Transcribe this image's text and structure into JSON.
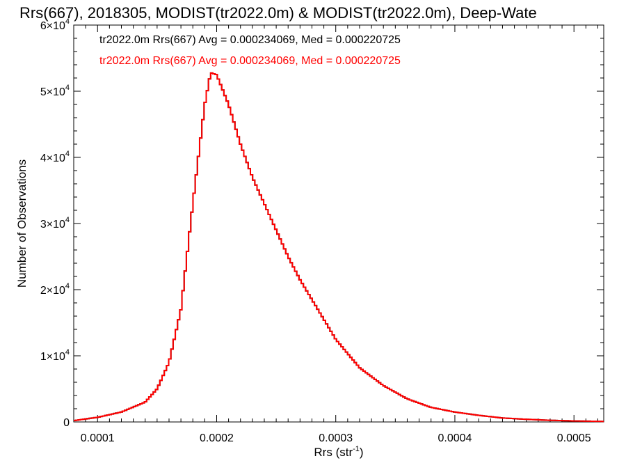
{
  "chart_data": {
    "type": "line",
    "title": "Rrs(667), 2018305, MODIST(tr2022.0m) & MODIST(tr2022.0m), Deep-Wate",
    "xlabel": "Rrs (str",
    "xlabel_sup": "-1",
    "xlabel_close": ")",
    "ylabel": "Number of Observations",
    "xlim": [
      8e-05,
      0.000525
    ],
    "ylim": [
      0,
      60000
    ],
    "x_ticks": [
      {
        "value": 0.0001,
        "label": "0.0001"
      },
      {
        "value": 0.0002,
        "label": "0.0002"
      },
      {
        "value": 0.0003,
        "label": "0.0003"
      },
      {
        "value": 0.0004,
        "label": "0.0004"
      },
      {
        "value": 0.0005,
        "label": "0.0005"
      }
    ],
    "y_ticks": [
      {
        "value": 0,
        "mant": "0",
        "exp": ""
      },
      {
        "value": 10000,
        "mant": "1×10",
        "exp": "4"
      },
      {
        "value": 20000,
        "mant": "2×10",
        "exp": "4"
      },
      {
        "value": 30000,
        "mant": "3×10",
        "exp": "4"
      },
      {
        "value": 40000,
        "mant": "4×10",
        "exp": "4"
      },
      {
        "value": 50000,
        "mant": "5×10",
        "exp": "4"
      },
      {
        "value": 60000,
        "mant": "6×10",
        "exp": "4"
      }
    ],
    "grid": false,
    "legend_placement": "top-left",
    "series": [
      {
        "name": "tr2022.0m Rrs(667) Avg = 0.000234069, Med = 0.000220725",
        "color": "#000000",
        "x": [
          8e-05,
          0.0001,
          0.00012,
          0.00014,
          0.00015,
          0.00016,
          0.00017,
          0.00018,
          0.00019,
          0.000195,
          0.0002,
          0.00021,
          0.00022,
          0.00023,
          0.00024,
          0.00025,
          0.00026,
          0.00027,
          0.00028,
          0.00029,
          0.0003,
          0.00032,
          0.00034,
          0.00036,
          0.00038,
          0.0004,
          0.00042,
          0.00044,
          0.00046,
          0.00048,
          0.0005,
          0.000525
        ],
        "y": [
          200,
          700,
          1500,
          3000,
          5000,
          9000,
          17000,
          33000,
          48000,
          52800,
          52500,
          48000,
          42000,
          37000,
          33000,
          29000,
          25000,
          21500,
          18500,
          15500,
          12500,
          8200,
          5500,
          3500,
          2200,
          1500,
          1000,
          600,
          400,
          250,
          150,
          80
        ]
      },
      {
        "name": "tr2022.0m Rrs(667) Avg = 0.000234069, Med = 0.000220725",
        "color": "#ff0000",
        "x": [
          8e-05,
          0.0001,
          0.00012,
          0.00014,
          0.00015,
          0.00016,
          0.00017,
          0.00018,
          0.00019,
          0.000195,
          0.0002,
          0.00021,
          0.00022,
          0.00023,
          0.00024,
          0.00025,
          0.00026,
          0.00027,
          0.00028,
          0.00029,
          0.0003,
          0.00032,
          0.00034,
          0.00036,
          0.00038,
          0.0004,
          0.00042,
          0.00044,
          0.00046,
          0.00048,
          0.0005,
          0.000525
        ],
        "y": [
          200,
          700,
          1500,
          3000,
          5000,
          9000,
          17000,
          33000,
          48000,
          52800,
          52500,
          48000,
          42000,
          37000,
          33000,
          29000,
          25000,
          21500,
          18500,
          15500,
          12500,
          8200,
          5500,
          3500,
          2200,
          1500,
          1000,
          600,
          400,
          250,
          150,
          80
        ]
      }
    ]
  }
}
